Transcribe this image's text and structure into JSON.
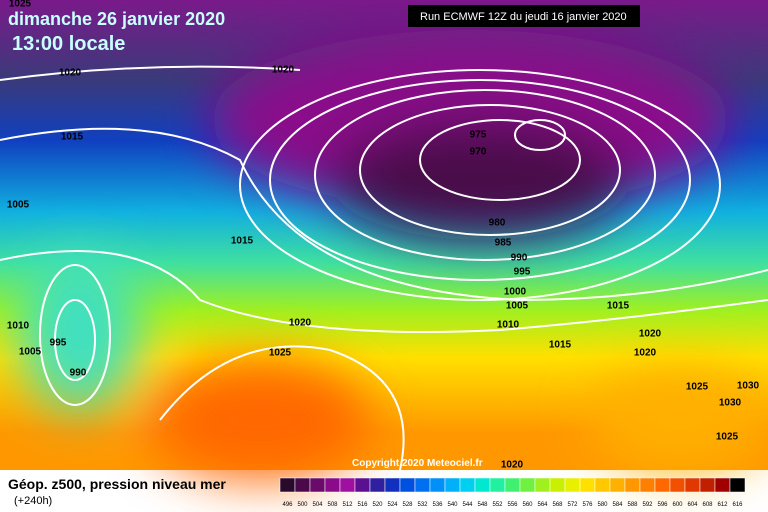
{
  "header": {
    "date": "dimanche 26 janvier 2020",
    "time": "13:00 locale",
    "run": "Run ECMWF 12Z du jeudi 16 janvier 2020"
  },
  "footer": {
    "title": "Géop. z500, pression niveau mer",
    "lead": "(+240h)",
    "copyright": "Copyright 2020 Meteociel.fr"
  },
  "isobar_labels": [
    "1025",
    "1020",
    "1020",
    "1015",
    "1005",
    "1015",
    "1010",
    "995",
    "1005",
    "990",
    "1020",
    "1025",
    "975",
    "970",
    "980",
    "985",
    "990",
    "995",
    "1000",
    "1005",
    "1010",
    "1015",
    "1015",
    "1020",
    "1020",
    "1025",
    "1030",
    "1030",
    "1025",
    "1020"
  ],
  "colorbar": {
    "labels": [
      496,
      500,
      504,
      508,
      512,
      516,
      520,
      524,
      528,
      532,
      536,
      540,
      544,
      548,
      552,
      556,
      560,
      564,
      568,
      572,
      576,
      580,
      584,
      588,
      592,
      596,
      600,
      604,
      608,
      612,
      616
    ],
    "colors": [
      "#2a0a2a",
      "#4a0a4a",
      "#6a0a6a",
      "#8a0a8a",
      "#a010a0",
      "#5a1090",
      "#3020a0",
      "#1030c0",
      "#0050e0",
      "#0070f0",
      "#0090f8",
      "#00b0f8",
      "#00d0f0",
      "#00e8d0",
      "#20f0a0",
      "#40f070",
      "#70f040",
      "#a0f020",
      "#c8f000",
      "#e8f000",
      "#ffe000",
      "#ffc800",
      "#ffb000",
      "#ff9800",
      "#ff8000",
      "#ff6800",
      "#f05000",
      "#e03800",
      "#c02000",
      "#a00000",
      "#000000"
    ]
  }
}
